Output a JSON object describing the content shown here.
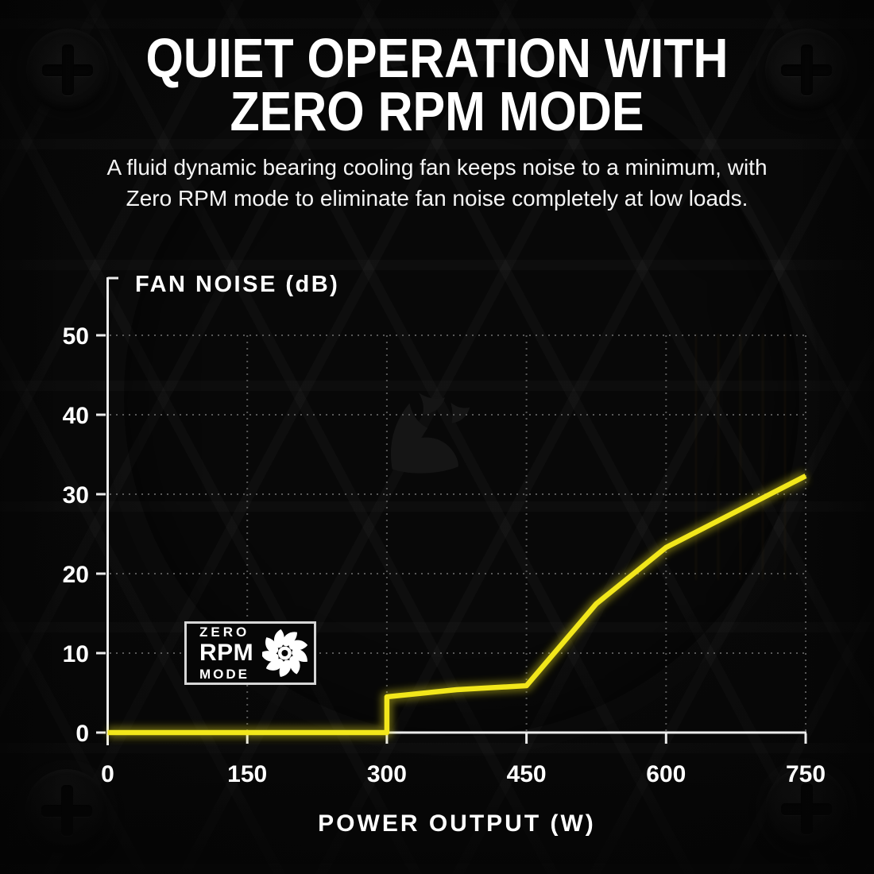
{
  "header": {
    "title_line1": "QUIET OPERATION WITH",
    "title_line2": "ZERO RPM MODE",
    "subtitle_line1": "A fluid dynamic bearing cooling fan keeps noise to a minimum, with",
    "subtitle_line2": "Zero RPM mode to eliminate fan noise completely at low loads."
  },
  "badge": {
    "word_top": "ZERO",
    "word_mid": "RPM",
    "word_bottom": "MODE",
    "icon": "fan-icon"
  },
  "decorations": {
    "corner_screws": "phillips-screw-icon",
    "watermark": "corsair-sails-logo"
  },
  "colors": {
    "background": "#080808",
    "accent_yellow": "#f2e71b",
    "axis": "#ececec",
    "grid": "#585858",
    "text": "#ffffff",
    "badge_border": "#d6d6d6"
  },
  "chart_data": {
    "type": "line",
    "title": "FAN NOISE (dB)",
    "xlabel": "POWER OUTPUT (W)",
    "ylabel": "FAN NOISE (dB)",
    "xlim": [
      0,
      750
    ],
    "ylim": [
      0,
      50
    ],
    "x_ticks": [
      0,
      150,
      300,
      450,
      600,
      750
    ],
    "y_ticks": [
      0,
      10,
      20,
      30,
      40,
      50
    ],
    "grid": "dotted",
    "legend": "none",
    "line_color": "#f2e71b",
    "series": [
      {
        "name": "fan-noise-db",
        "points": [
          [
            0,
            0
          ],
          [
            300,
            0
          ],
          [
            300,
            4.5
          ],
          [
            375,
            5.4
          ],
          [
            450,
            5.9
          ],
          [
            525,
            16.2
          ],
          [
            600,
            23.3
          ],
          [
            750,
            32.3
          ]
        ]
      }
    ]
  }
}
